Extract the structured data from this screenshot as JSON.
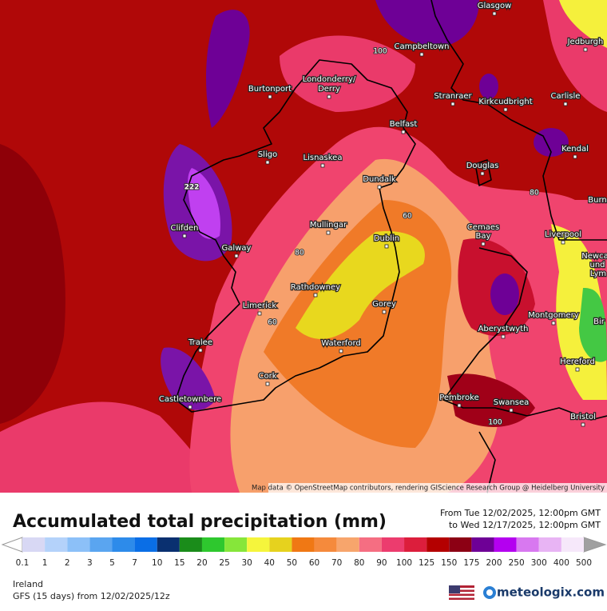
{
  "map": {
    "cities": [
      "Glasgow",
      "Campbeltown",
      "Jedburgh",
      "Burtonport",
      "Londonderry/",
      "Derry",
      "Stranraer",
      "Kirkcudbright",
      "Carlisle",
      "Belfast",
      "Sligo",
      "Lisnaskea",
      "Douglas",
      "Kendal",
      "Dundalk",
      "Burn",
      "Clifden",
      "Mullingar",
      "Dublin",
      "Cemaes",
      "Bay",
      "Liverpool",
      "Galway",
      "Newca",
      "und",
      "Lym",
      "Rathdowney",
      "Limerick",
      "Gorey",
      "Montgomery",
      "Bir",
      "Aberystwyth",
      "Hereford",
      "Tralee",
      "Waterford",
      "Cork",
      "Castletownbere",
      "Pembroke",
      "Swansea",
      "Bristol"
    ],
    "contour_labels": [
      "100",
      "80",
      "60",
      "80",
      "60",
      "222",
      "100"
    ],
    "attribution": "Map data © OpenStreetMap contributors, rendering GIScience Research Group @ Heidelberg University"
  },
  "header": {
    "title": "Accumulated total precipitation (mm)",
    "from": "From Tue 12/02/2025, 12:00pm GMT",
    "to": "to Wed 12/17/2025, 12:00pm GMT"
  },
  "legend": {
    "labels": [
      "0.1",
      "1",
      "2",
      "3",
      "5",
      "7",
      "10",
      "15",
      "20",
      "25",
      "30",
      "40",
      "50",
      "60",
      "70",
      "80",
      "90",
      "100",
      "125",
      "150",
      "175",
      "200",
      "250",
      "300",
      "400",
      "500"
    ],
    "colors": [
      "#d8d8f4",
      "#b4d2fa",
      "#8cc0f8",
      "#5aa5f0",
      "#2d8bea",
      "#0a6ee6",
      "#0a3070",
      "#1a8c1a",
      "#2ec82e",
      "#86e63a",
      "#f5f53c",
      "#e6d21e",
      "#f07814",
      "#f58a3c",
      "#f7a56c",
      "#f56e82",
      "#ec3c6e",
      "#dc1e3c",
      "#b40000",
      "#8c0014",
      "#6e0096",
      "#b400f0",
      "#d878f0",
      "#e8b4f4",
      "#f6e8fa"
    ]
  },
  "footer": {
    "region": "Ireland",
    "model": "GFS (15 days) from 12/02/2025/12z",
    "brand": "meteologix.com"
  }
}
